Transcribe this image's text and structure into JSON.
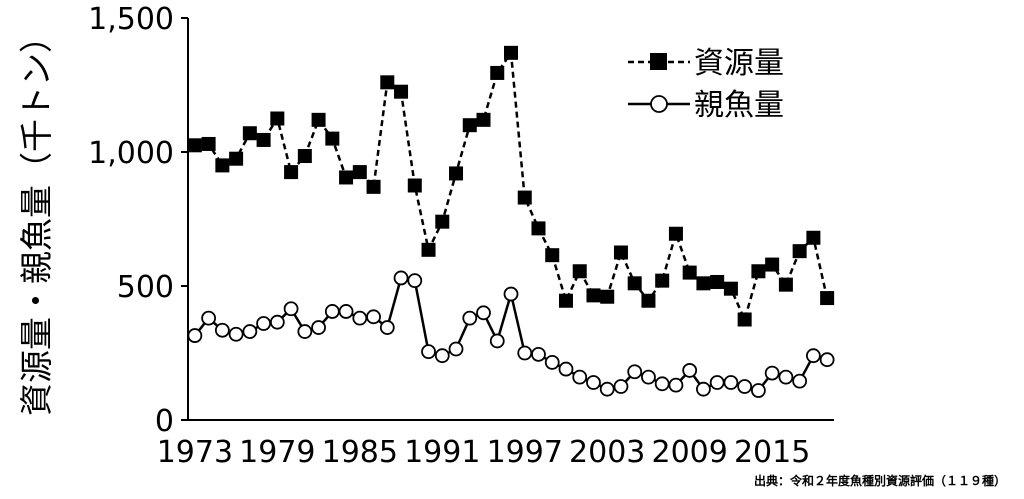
{
  "chart_data": {
    "type": "line",
    "xlabel": "",
    "ylabel": "資源量・親魚量（千トン）",
    "ylim": [
      0,
      1500
    ],
    "yticks": [
      0,
      500,
      1000,
      1500
    ],
    "ytick_labels": [
      "0",
      "500",
      "1,000",
      "1,500"
    ],
    "xtick_labels": [
      "1973",
      "1979",
      "1985",
      "1991",
      "1997",
      "2003",
      "2009",
      "2015"
    ],
    "xlim": [
      1972.5,
      2019.5
    ],
    "x": [
      1973,
      1974,
      1975,
      1976,
      1977,
      1978,
      1979,
      1980,
      1981,
      1982,
      1983,
      1984,
      1985,
      1986,
      1987,
      1988,
      1989,
      1990,
      1991,
      1992,
      1993,
      1994,
      1995,
      1996,
      1997,
      1998,
      1999,
      2000,
      2001,
      2002,
      2003,
      2004,
      2005,
      2006,
      2007,
      2008,
      2009,
      2010,
      2011,
      2012,
      2013,
      2014,
      2015,
      2016,
      2017,
      2018,
      2019
    ],
    "series": [
      {
        "name": "資源量",
        "color": "#000000",
        "line_style": "dashed",
        "marker": "filled-square",
        "values": [
          1025,
          1030,
          950,
          975,
          1070,
          1045,
          1125,
          925,
          985,
          1120,
          1050,
          905,
          925,
          870,
          1260,
          1225,
          875,
          635,
          740,
          920,
          1100,
          1120,
          1295,
          1370,
          830,
          715,
          615,
          445,
          555,
          465,
          460,
          625,
          510,
          445,
          520,
          695,
          550,
          510,
          515,
          490,
          375,
          555,
          580,
          505,
          630,
          680,
          455
        ]
      },
      {
        "name": "親魚量",
        "color": "#000000",
        "line_style": "solid",
        "marker": "open-circle",
        "values": [
          315,
          380,
          335,
          320,
          330,
          360,
          365,
          415,
          330,
          345,
          405,
          405,
          380,
          385,
          345,
          530,
          520,
          255,
          240,
          265,
          380,
          400,
          295,
          470,
          250,
          245,
          215,
          190,
          160,
          140,
          115,
          125,
          180,
          160,
          135,
          130,
          185,
          115,
          140,
          140,
          125,
          110,
          175,
          160,
          145,
          240,
          225
        ]
      }
    ],
    "legend_position": "top-right",
    "grid": false
  },
  "source_note": "出典：令和２年度魚種別資源評価（１１９種）"
}
